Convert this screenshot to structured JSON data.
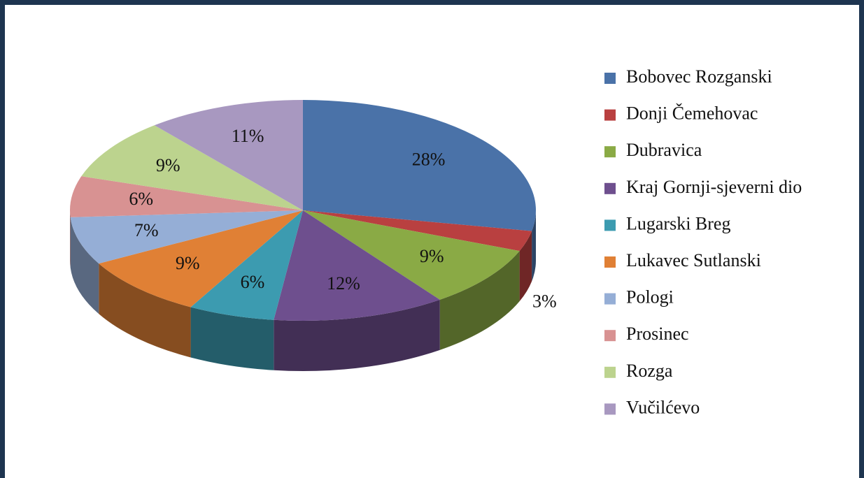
{
  "chart_data": {
    "type": "pie",
    "categories": [
      "Bobovec Rozganski",
      "Donji Čemehovac",
      "Dubravica",
      "Kraj Gornji-sjeverni dio",
      "Lugarski Breg",
      "Lukavec Sutlanski",
      "Pologi",
      "Prosinec",
      "Rozga",
      "Vučilćevo"
    ],
    "values": [
      28,
      3,
      9,
      12,
      6,
      9,
      7,
      6,
      9,
      11
    ],
    "value_labels": [
      "28%",
      "3%",
      "9%",
      "12%",
      "6%",
      "9%",
      "7%",
      "6%",
      "9%",
      "11%"
    ],
    "colors": [
      "#4a72a8",
      "#b94040",
      "#8aaa45",
      "#6e4f8e",
      "#3c9bb0",
      "#e08035",
      "#95aed6",
      "#d89292",
      "#bcd38e",
      "#a898c0"
    ],
    "legend": "right"
  }
}
